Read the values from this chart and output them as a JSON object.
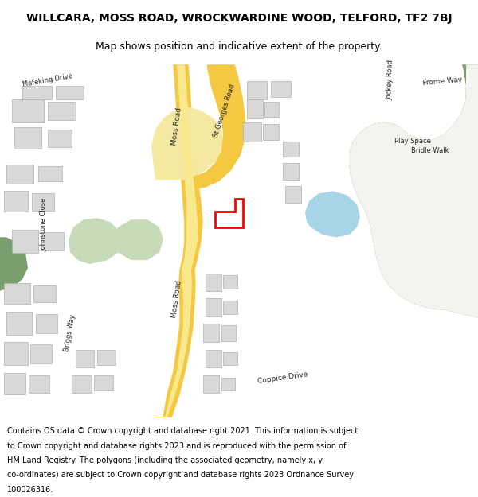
{
  "title": "WILLCARA, MOSS ROAD, WROCKWARDINE WOOD, TELFORD, TF2 7BJ",
  "subtitle": "Map shows position and indicative extent of the property.",
  "footer": "Contains OS data © Crown copyright and database right 2021. This information is subject to Crown copyright and database rights 2023 and is reproduced with the permission of HM Land Registry. The polygons (including the associated geometry, namely x, y co-ordinates) are subject to Crown copyright and database rights 2023 Ordnance Survey 100026316.",
  "bg_color": "#ffffff",
  "map_bg": "#f5f3f0",
  "road_yellow": "#f5c842",
  "road_yellow_fill": "#f5e8a0",
  "green_color": "#7a9e6e",
  "light_green": "#c8dbb8",
  "blue_water": "#a8d4e8",
  "building_color": "#d8d8d8",
  "building_edge": "#b0b0b0",
  "road_outline": "#cccccc",
  "red_outline": "#ff0000",
  "text_color": "#333333",
  "label_color": "#444444"
}
